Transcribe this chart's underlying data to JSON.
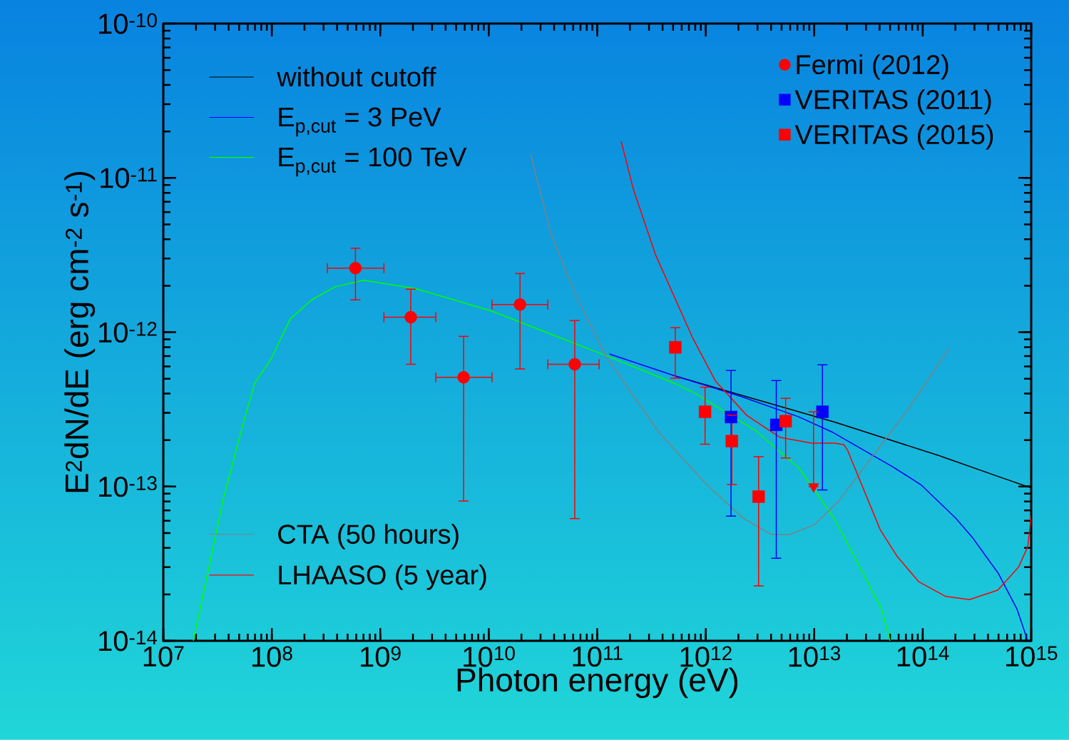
{
  "chart_data": {
    "type": "line",
    "xlabel": "Photon energy (eV)",
    "ylabel": "E$^{2}$dN/dE (erg cm$^{-2}$ s$^{-1}$)",
    "log": "xy",
    "legend": "top left",
    "xlim": [
      10000000.0,
      1000000000000000.0
    ],
    "ylim": [
      1e-14,
      1e-10
    ],
    "xticks": [
      {
        "value": 10000000.0,
        "label": "10$^{7}$"
      },
      {
        "value": 100000000.0,
        "label": "10$^{8}$"
      },
      {
        "value": 1000000000.0,
        "label": "10$^{9}$"
      },
      {
        "value": 10000000000.0,
        "label": "10$^{10}$"
      },
      {
        "value": 100000000000.0,
        "label": "10$^{11}$"
      },
      {
        "value": 1000000000000.0,
        "label": "10$^{12}$"
      },
      {
        "value": 10000000000000.0,
        "label": "10$^{13}$"
      },
      {
        "value": 100000000000000.0,
        "label": "10$^{14}$"
      },
      {
        "value": 1000000000000000.0,
        "label": "10$^{15}$"
      }
    ],
    "yticks": [
      {
        "value": 1e-14,
        "label": "10$^{-14}$"
      },
      {
        "value": 1e-13,
        "label": "10$^{-13}$"
      },
      {
        "value": 1e-12,
        "label": "10$^{-12}$"
      },
      {
        "value": 1e-11,
        "label": "10$^{-11}$"
      },
      {
        "value": 1e-10,
        "label": "10$^{-10}$"
      }
    ],
    "series": [
      {
        "name": "without cutoff",
        "color": "#000000",
        "x": [
          526000000000.0,
          2150000000000.0,
          15800000000000.0,
          140000000000000.0,
          500000000000000.0,
          1000000000000000.0
        ],
        "values": [
          5.2e-13,
          3.9e-13,
          2.6e-13,
          1.59e-13,
          1.16e-13,
          9.8e-14
        ]
      },
      {
        "name": "E$_{p,cut}$ = 3 PeV",
        "color": "#0000ff",
        "x": [
          129000000000.0,
          526000000000.0,
          2150000000000.0,
          7200000000000.0,
          14900000000000.0,
          53200000000000.0,
          97500000000000.0,
          201000000000000.0,
          290000000000000.0,
          500000000000000.0,
          741000000000000.0,
          916000000000000.0
        ],
        "values": [
          7.23e-13,
          5.2e-13,
          3.82e-13,
          2.83e-13,
          2.24e-13,
          1.34e-13,
          1.02e-13,
          6.24e-14,
          4.63e-14,
          2.72e-14,
          1.6e-14,
          1.03e-14
        ]
      },
      {
        "name": "E$_{p,cut}$ = 100 TeV",
        "color": "#00ff00",
        "x": [
          18900000.0,
          35600000.0,
          53700000.0,
          69500000.0,
          98400000.0,
          148000000.0,
          233000000.0,
          384000000.0,
          703000000.0,
          2090000000.0,
          10700000000.0,
          129000000000.0,
          533000000000.0,
          815000000000.0,
          2910000000000.0,
          7200000000000.0,
          14900000000000.0,
          24200000000000.0,
          41800000000000.0,
          50000000000000.0
        ],
        "values": [
          1e-14,
          8.24e-14,
          2.47e-13,
          4.67e-13,
          6.71e-13,
          1.22e-12,
          1.62e-12,
          1.97e-12,
          2.17e-12,
          1.92e-12,
          1.37e-12,
          6.92e-13,
          4.62e-13,
          3.98e-13,
          2.29e-13,
          1.32e-13,
          6.38e-14,
          3.37e-14,
          1.6e-14,
          1e-14
        ]
      },
      {
        "name": "CTA (50 hours)",
        "color": "#808080",
        "x": [
          24300000000.0,
          37800000000.0,
          63000000000.0,
          121000000000.0,
          370000000000.0,
          977000000000.0,
          2210000000000.0,
          4000000000000.0,
          5920000000000.0,
          10100000000000.0,
          16800000000000.0,
          74300000000000.0,
          173000000000000.0
        ],
        "values": [
          1.43e-11,
          4.24e-12,
          1.75e-12,
          6.92e-13,
          2.24e-13,
          1.06e-13,
          6.24e-14,
          4.89e-14,
          4.89e-14,
          5.67e-14,
          8.05e-14,
          3.21e-13,
          7.78e-13
        ]
      },
      {
        "name": "LHAASO (5 year)",
        "color": "#ff0000",
        "x": [
          166000000000.0,
          215000000000.0,
          344000000000.0,
          755000000000.0,
          1230000000000.0,
          2390000000000.0,
          4860000000000.0,
          9460000000000.0,
          15400000000000.0,
          18700000000000.0,
          20200000000000.0,
          40500000000000.0,
          58200000000000.0,
          91700000000000.0,
          163000000000000.0,
          269000000000000.0,
          492000000000000.0,
          764000000000000.0,
          929000000000000.0,
          1000000000000000.0
        ],
        "values": [
          1.73e-11,
          8.45e-12,
          3.18e-12,
          9.23e-13,
          4.82e-13,
          2.89e-13,
          2.08e-13,
          1.91e-13,
          1.91e-13,
          1.87e-13,
          1.73e-13,
          5.26e-14,
          3.52e-14,
          2.42e-14,
          1.94e-14,
          1.85e-14,
          2.13e-14,
          3e-14,
          4.07e-14,
          6.5e-14
        ]
      },
      {
        "name": "Fermi (2012)",
        "type": "scatter",
        "marker": "circle",
        "color": "#ff0000",
        "x": [
          590000000.0,
          1910000000.0,
          5860000000.0,
          19400000000.0,
          62000000000.0
        ],
        "values": [
          2.6e-12,
          1.25e-12,
          5.1e-13,
          1.51e-12,
          6.2e-13
        ],
        "errors": [
          [
            1.62e-12,
            3.5e-12
          ],
          [
            6.2e-13,
            1.9e-12
          ],
          [
            8.05e-14,
            9.4e-13
          ],
          [
            5.78e-13,
            2.4e-12
          ],
          [
            6.2e-14,
            1.19e-12
          ]
        ],
        "xerrors": [
          [
            325000000.0,
            1080000000.0
          ],
          [
            1080000000.0,
            3250000000.0
          ],
          [
            3250000000.0,
            10700000000.0
          ],
          [
            10700000000.0,
            35000000000.0
          ],
          [
            35000000000.0,
            104000000000.0
          ]
        ]
      },
      {
        "name": "VERITAS (2011)",
        "type": "scatter",
        "marker": "square",
        "color": "#0000ff",
        "x": [
          1710000000000.0,
          4470000000000.0,
          11900000000000.0
        ],
        "values": [
          2.82e-13,
          2.51e-13,
          3.05e-13
        ],
        "errors": [
          [
            6.43e-14,
            5.65e-13
          ],
          [
            3.43e-14,
            4.86e-13
          ],
          [
            9.5e-14,
            6.15e-13
          ]
        ]
      },
      {
        "name": "VERITAS (2015)",
        "type": "scatter",
        "marker": "square",
        "color": "#ff0000",
        "x": [
          524000000000.0,
          985000000000.0,
          1740000000000.0,
          3070000000000.0,
          5450000000000.0
        ],
        "values": [
          7.98e-13,
          3.05e-13,
          1.97e-13,
          8.6e-14,
          2.65e-13
        ],
        "errors": [
          [
            5.03e-13,
            1.07e-12
          ],
          [
            1.88e-13,
            4.4e-13
          ],
          [
            1.03e-13,
            2.9e-13
          ],
          [
            2.27e-14,
            1.56e-13
          ],
          [
            1.53e-13,
            3.73e-13
          ]
        ]
      },
      {
        "type": "scatter",
        "marker": "triangle",
        "color": "#ff0000",
        "x": [
          9860000000000.0
        ],
        "values": [
          1e-13
        ],
        "errors": [
          [
            1e-13,
            3.05e-13
          ]
        ]
      }
    ]
  }
}
